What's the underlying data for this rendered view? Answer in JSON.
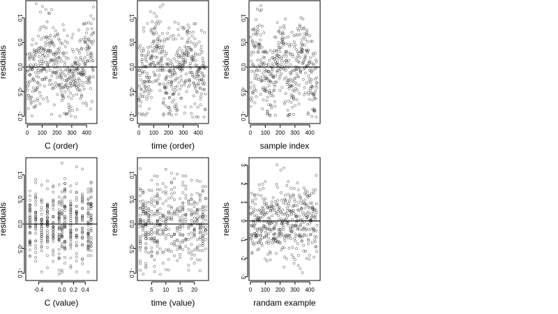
{
  "chart_data": [
    {
      "type": "scatter",
      "xlabel": "C (order)",
      "ylabel": "residuals",
      "xlim": [
        -10,
        470
      ],
      "ylim": [
        -1.15,
        1.35
      ],
      "xticks": [
        0,
        100,
        200,
        300,
        400
      ],
      "xtick_labels": [
        "0",
        "100",
        "200",
        "300",
        "400"
      ],
      "yticks": [
        -1.0,
        -0.5,
        0.0,
        0.5,
        1.0
      ],
      "ytick_labels": [
        "-1.0",
        "-0.5",
        "0.0",
        "0.5",
        "1.0"
      ],
      "hline": 0,
      "x_mode": "index",
      "n_points": 450,
      "amplitude": 0.42,
      "wave_scale": 0.28,
      "wave_freq": 3.2,
      "seed": 11,
      "point_count_note": ""
    },
    {
      "type": "scatter",
      "xlabel": "time (order)",
      "ylabel": "residuals",
      "xlim": [
        -10,
        470
      ],
      "ylim": [
        -1.15,
        1.35
      ],
      "xticks": [
        0,
        100,
        200,
        300,
        400
      ],
      "xtick_labels": [
        "0",
        "100",
        "200",
        "300",
        "400"
      ],
      "yticks": [
        -1.0,
        -0.5,
        0.0,
        0.5,
        1.0
      ],
      "ytick_labels": [
        "-1.0",
        "-0.5",
        "0.0",
        "0.5",
        "1.0"
      ],
      "hline": 0,
      "x_mode": "index",
      "n_points": 450,
      "amplitude": 0.42,
      "wave_scale": 0.25,
      "wave_freq": 4.5,
      "seed": 23
    },
    {
      "type": "scatter",
      "xlabel": "sample index",
      "ylabel": "residuals",
      "xlim": [
        -10,
        470
      ],
      "ylim": [
        -1.15,
        1.35
      ],
      "xticks": [
        0,
        100,
        200,
        300,
        400
      ],
      "xtick_labels": [
        "0",
        "100",
        "200",
        "300",
        "400"
      ],
      "yticks": [
        -1.0,
        -0.5,
        0.0,
        0.5,
        1.0
      ],
      "ytick_labels": [
        "-1.0",
        "-0.5",
        "0.0",
        "0.5",
        "1.0"
      ],
      "hline": 0,
      "x_mode": "index",
      "n_points": 450,
      "amplitude": 0.42,
      "wave_scale": 0.3,
      "wave_freq": 6.0,
      "seed": 37
    },
    {
      "type": "scatter",
      "xlabel": "C (value)",
      "ylabel": "residuals",
      "xlim": [
        -0.62,
        0.6
      ],
      "ylim": [
        -1.15,
        1.35
      ],
      "xticks": [
        -0.4,
        0.0,
        0.2,
        0.4
      ],
      "xtick_labels": [
        "-0.4",
        "0.0",
        "0.2",
        "0.4"
      ],
      "yticks": [
        -1.0,
        -0.5,
        0.0,
        0.5,
        1.0
      ],
      "ytick_labels": [
        "-1.0",
        "-0.5",
        "0.0",
        "0.5",
        "1.0"
      ],
      "hline": 0,
      "x_mode": "discrete",
      "x_levels": [
        -0.55,
        -0.45,
        -0.35,
        -0.25,
        -0.15,
        -0.05,
        0.0,
        0.05,
        0.15,
        0.25,
        0.35,
        0.45,
        0.5
      ],
      "n_points": 450,
      "amplitude": 0.42,
      "seed": 51
    },
    {
      "type": "scatter",
      "xlabel": "time (value)",
      "ylabel": "residuals",
      "xlim": [
        0,
        25
      ],
      "ylim": [
        -1.15,
        1.35
      ],
      "xticks": [
        5,
        10,
        15,
        20
      ],
      "xtick_labels": [
        "5",
        "10",
        "15",
        "20"
      ],
      "yticks": [
        -1.0,
        -0.5,
        0.0,
        0.5,
        1.0
      ],
      "ytick_labels": [
        "-1.0",
        "-0.5",
        "0.0",
        "0.5",
        "1.0"
      ],
      "hline": 0,
      "x_mode": "discrete",
      "x_levels": [
        1,
        2,
        3,
        4,
        5,
        6,
        7,
        8,
        9,
        10,
        11,
        12,
        13,
        14,
        15,
        16,
        17,
        18,
        19,
        20,
        21,
        22,
        23,
        24
      ],
      "n_points": 450,
      "amplitude": 0.42,
      "seed": 67
    },
    {
      "type": "scatter",
      "xlabel": "randam example",
      "ylabel": "residuals",
      "xlim": [
        -10,
        470
      ],
      "ylim": [
        -3.2,
        3.4
      ],
      "xticks": [
        0,
        100,
        200,
        300,
        400
      ],
      "xtick_labels": [
        "0",
        "100",
        "200",
        "300",
        "400"
      ],
      "yticks": [
        -3,
        -2,
        -1,
        0,
        1,
        2,
        3
      ],
      "ytick_labels": [
        "-3",
        "-2",
        "-1",
        "0",
        "1",
        "2",
        "3"
      ],
      "hline": 0,
      "x_mode": "index",
      "n_points": 450,
      "amplitude": 1.0,
      "wave_scale": 0.0,
      "wave_freq": 0,
      "seed": 89
    }
  ]
}
